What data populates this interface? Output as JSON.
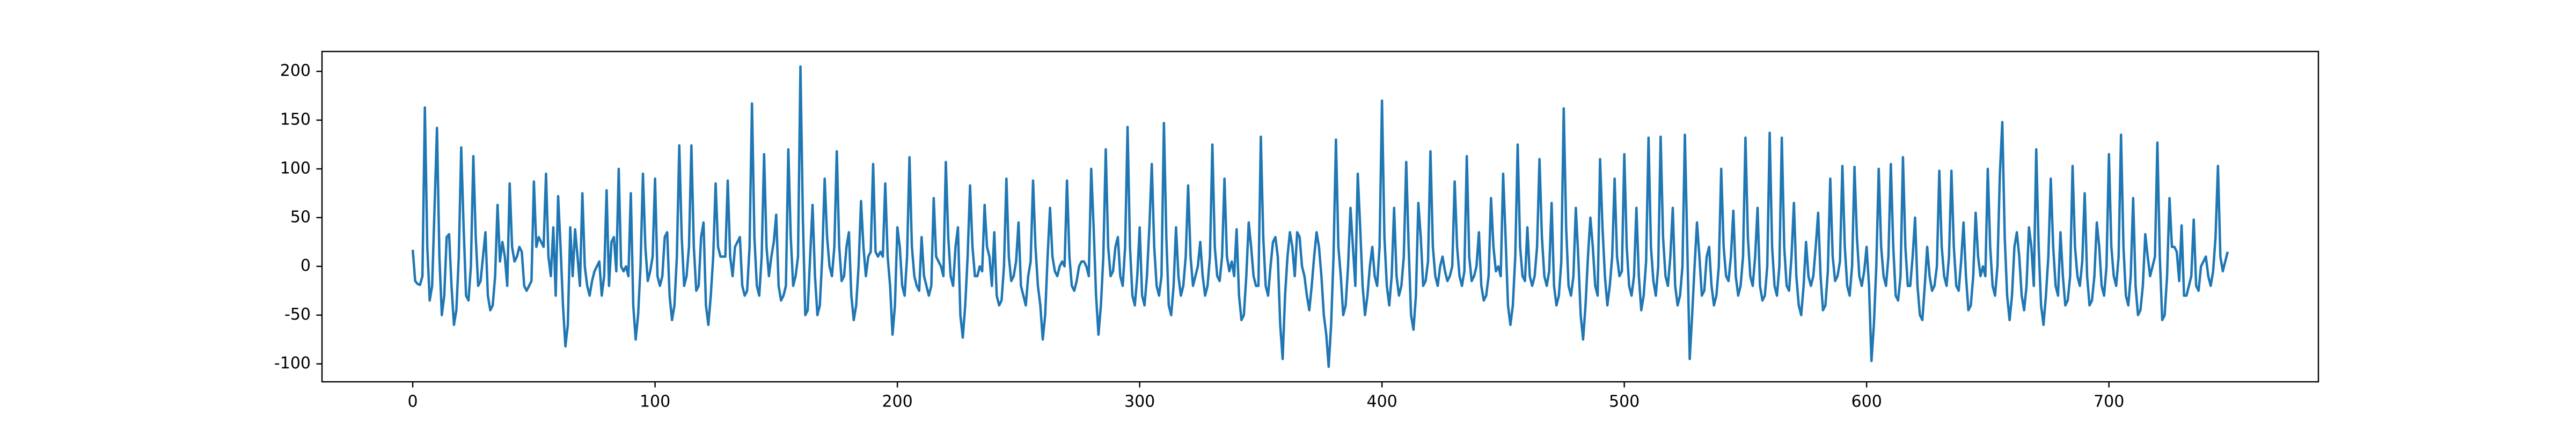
{
  "chart_data": {
    "type": "line",
    "color": "#1f77b4",
    "xlim": [
      -37.45,
      786.45
    ],
    "ylim": [
      -118.4,
      220.4
    ],
    "xticks": [
      0,
      100,
      200,
      300,
      400,
      500,
      600,
      700
    ],
    "yticks": [
      -100,
      -50,
      0,
      50,
      100,
      150,
      200
    ],
    "values": [
      17,
      -15,
      -18,
      -19,
      -10,
      163,
      20,
      -35,
      -20,
      60,
      142,
      10,
      -50,
      -30,
      30,
      33,
      -20,
      -60,
      -45,
      10,
      122,
      40,
      -30,
      -35,
      0,
      113,
      30,
      -20,
      -15,
      10,
      35,
      -30,
      -45,
      -40,
      -10,
      63,
      5,
      25,
      10,
      -20,
      85,
      20,
      5,
      10,
      20,
      15,
      -20,
      -25,
      -20,
      -15,
      87,
      20,
      30,
      25,
      20,
      95,
      10,
      -10,
      40,
      -30,
      72,
      20,
      -40,
      -82,
      -60,
      40,
      -10,
      38,
      10,
      -20,
      75,
      0,
      -20,
      -30,
      -15,
      -5,
      0,
      5,
      -30,
      -10,
      78,
      -20,
      25,
      30,
      -5,
      100,
      0,
      -5,
      0,
      -10,
      75,
      -40,
      -75,
      -50,
      0,
      95,
      20,
      -15,
      -5,
      10,
      90,
      -10,
      -20,
      -10,
      30,
      35,
      -30,
      -55,
      -40,
      10,
      124,
      30,
      -20,
      -10,
      20,
      124,
      20,
      -25,
      -20,
      30,
      45,
      -40,
      -60,
      -30,
      10,
      85,
      20,
      10,
      10,
      10,
      88,
      10,
      -10,
      20,
      25,
      30,
      -20,
      -30,
      -25,
      20,
      167,
      30,
      -20,
      -30,
      10,
      115,
      20,
      -10,
      10,
      25,
      53,
      -20,
      -35,
      -30,
      -20,
      120,
      30,
      -20,
      -10,
      10,
      205,
      50,
      -50,
      -45,
      10,
      63,
      -10,
      -50,
      -40,
      10,
      90,
      30,
      0,
      -10,
      20,
      118,
      20,
      -15,
      -10,
      20,
      35,
      -30,
      -55,
      -40,
      0,
      67,
      20,
      -10,
      10,
      15,
      105,
      15,
      10,
      15,
      10,
      85,
      10,
      -20,
      -70,
      -40,
      40,
      20,
      -20,
      -30,
      10,
      112,
      20,
      -10,
      -20,
      -25,
      30,
      -10,
      -20,
      -30,
      -20,
      70,
      10,
      5,
      0,
      -10,
      107,
      30,
      -10,
      -20,
      20,
      40,
      -50,
      -73,
      -40,
      10,
      83,
      20,
      -10,
      -10,
      0,
      -5,
      63,
      20,
      10,
      -20,
      35,
      -30,
      -40,
      -35,
      0,
      90,
      10,
      -15,
      -10,
      5,
      45,
      -20,
      -30,
      -40,
      -10,
      5,
      88,
      20,
      -20,
      -40,
      -75,
      -50,
      10,
      60,
      10,
      -5,
      -10,
      0,
      5,
      0,
      88,
      10,
      -20,
      -25,
      -15,
      0,
      5,
      5,
      0,
      -10,
      100,
      40,
      -30,
      -70,
      -40,
      10,
      120,
      20,
      -10,
      -5,
      20,
      30,
      -10,
      -20,
      20,
      143,
      20,
      -30,
      -40,
      -10,
      40,
      -30,
      -40,
      -10,
      40,
      105,
      20,
      -20,
      -30,
      -10,
      147,
      30,
      -40,
      -50,
      -20,
      40,
      -10,
      -30,
      -20,
      10,
      83,
      10,
      -20,
      -10,
      0,
      25,
      -10,
      -30,
      -20,
      10,
      125,
      20,
      -10,
      -15,
      10,
      90,
      10,
      -5,
      5,
      -10,
      38,
      -30,
      -55,
      -50,
      -10,
      45,
      20,
      -10,
      -20,
      -20,
      133,
      30,
      -20,
      -30,
      0,
      25,
      30,
      10,
      -60,
      -95,
      -30,
      10,
      35,
      20,
      -10,
      35,
      30,
      0,
      -10,
      -30,
      -45,
      -20,
      10,
      35,
      20,
      -10,
      -50,
      -70,
      -103,
      -60,
      10,
      130,
      20,
      -10,
      -50,
      -40,
      0,
      60,
      20,
      -20,
      95,
      40,
      -20,
      -50,
      -30,
      0,
      20,
      -10,
      -20,
      20,
      170,
      30,
      -20,
      -40,
      -10,
      60,
      -10,
      -30,
      -20,
      10,
      107,
      20,
      -50,
      -65,
      -30,
      65,
      30,
      -20,
      -15,
      5,
      118,
      20,
      -10,
      -20,
      0,
      10,
      -5,
      -15,
      -10,
      0,
      87,
      20,
      -10,
      -20,
      -5,
      113,
      10,
      -15,
      -10,
      0,
      35,
      -20,
      -35,
      -30,
      -10,
      70,
      20,
      -5,
      0,
      -10,
      95,
      30,
      -40,
      -60,
      -40,
      10,
      125,
      20,
      -10,
      -15,
      40,
      -10,
      -20,
      -10,
      20,
      110,
      30,
      -10,
      -20,
      -5,
      65,
      -20,
      -40,
      -30,
      5,
      162,
      40,
      -20,
      -30,
      -10,
      60,
      10,
      -50,
      -75,
      -40,
      10,
      50,
      20,
      -20,
      -30,
      110,
      40,
      -10,
      -40,
      -20,
      10,
      90,
      10,
      -10,
      -5,
      115,
      20,
      -20,
      -30,
      -10,
      60,
      -10,
      -45,
      -30,
      5,
      132,
      20,
      -15,
      -30,
      0,
      133,
      30,
      -10,
      -20,
      10,
      60,
      -20,
      -40,
      -30,
      0,
      135,
      20,
      -95,
      -50,
      0,
      45,
      10,
      -30,
      -25,
      10,
      20,
      -20,
      -40,
      -30,
      0,
      100,
      20,
      -10,
      -15,
      10,
      57,
      -10,
      -30,
      -20,
      10,
      132,
      30,
      -10,
      -20,
      10,
      60,
      -20,
      -35,
      -30,
      0,
      137,
      20,
      -20,
      -30,
      0,
      132,
      20,
      -20,
      -25,
      10,
      65,
      -10,
      -40,
      -50,
      -20,
      25,
      -10,
      -20,
      -10,
      20,
      55,
      -10,
      -45,
      -40,
      -5,
      90,
      10,
      -15,
      -10,
      5,
      103,
      20,
      -20,
      -30,
      0,
      102,
      30,
      -10,
      -20,
      -5,
      20,
      -20,
      -97,
      -60,
      0,
      100,
      20,
      -10,
      -20,
      10,
      105,
      20,
      -30,
      -35,
      -10,
      112,
      20,
      -20,
      -20,
      10,
      50,
      -20,
      -50,
      -55,
      -20,
      20,
      -10,
      -25,
      -20,
      0,
      98,
      20,
      -10,
      -20,
      10,
      98,
      20,
      -20,
      -25,
      5,
      45,
      -10,
      -45,
      -40,
      -10,
      55,
      10,
      -10,
      0,
      -10,
      100,
      20,
      -20,
      -30,
      0,
      95,
      148,
      30,
      -30,
      -55,
      -30,
      20,
      35,
      10,
      -30,
      -45,
      -20,
      40,
      20,
      -20,
      120,
      20,
      -40,
      -60,
      -30,
      10,
      90,
      20,
      -20,
      -30,
      35,
      -10,
      -40,
      -35,
      -10,
      103,
      20,
      -10,
      -20,
      5,
      75,
      -10,
      -40,
      -35,
      -10,
      45,
      20,
      -20,
      -30,
      0,
      115,
      20,
      -10,
      -20,
      10,
      135,
      20,
      -30,
      -40,
      -10,
      70,
      -20,
      -50,
      -45,
      -20,
      33,
      10,
      -10,
      0,
      10,
      127,
      10,
      -55,
      -50,
      -10,
      70,
      20,
      20,
      15,
      -15,
      42,
      -30,
      -30,
      -20,
      -10,
      48,
      -20,
      -25,
      0,
      5,
      10,
      -10,
      -20,
      -5,
      30,
      103,
      10,
      -5,
      5,
      15
    ]
  }
}
